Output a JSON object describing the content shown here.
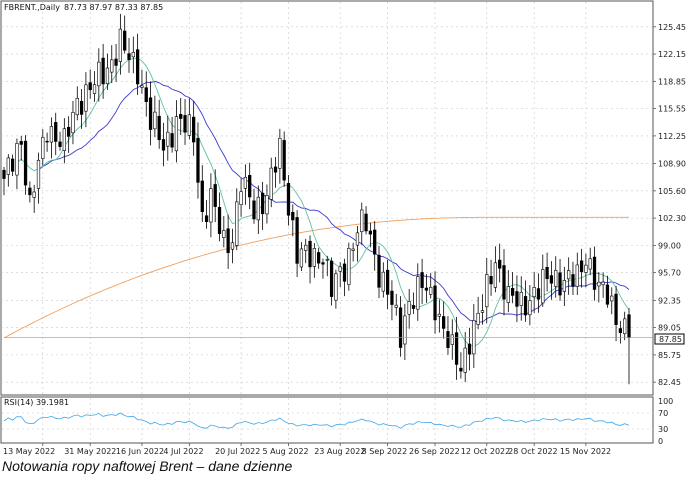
{
  "header": {
    "symbol": "FBRENT.,Daily",
    "ohlc": "87.73 87.97 87.33 87.85"
  },
  "caption": "Notowania ropy naftowej Brent – dane dzienne",
  "colors": {
    "up": "#ffffff",
    "down": "#000000",
    "ma_fast": "#5fc2a0",
    "ma_mid": "#3a3ad0",
    "ma_slow": "#f0a060",
    "rsi": "#3fa7e8",
    "grid": "#c8c8c8"
  },
  "chart_data": [
    {
      "type": "candlestick",
      "y_ticks": [
        "125.45",
        "122.15",
        "118.85",
        "115.55",
        "112.25",
        "108.90",
        "105.60",
        "102.30",
        "99.00",
        "95.70",
        "92.35",
        "89.05",
        "85.75",
        "82.45"
      ],
      "ylim": [
        81.5,
        127.0
      ],
      "x_ticks": [
        "13 May 2022",
        "31 May 2022",
        "16 Jun 2022",
        "4 Jul 2022",
        "20 Jul 2022",
        "5 Aug 2022",
        "23 Aug 2022",
        "8 Sep 2022",
        "26 Sep 2022",
        "12 Oct 2022",
        "28 Oct 2022",
        "15 Nov 2022"
      ],
      "last_price": "87.85",
      "anchors": [
        [
          "2022-05-02",
          106.5
        ],
        [
          "2022-05-06",
          112.0
        ],
        [
          "2022-05-10",
          103.5
        ],
        [
          "2022-05-16",
          113.5
        ],
        [
          "2022-05-20",
          111.0
        ],
        [
          "2022-05-25",
          116.5
        ],
        [
          "2022-05-31",
          118.5
        ],
        [
          "2022-06-03",
          120.5
        ],
        [
          "2022-06-08",
          123.5
        ],
        [
          "2022-06-10",
          121.5
        ],
        [
          "2022-06-14",
          120.5
        ],
        [
          "2022-06-17",
          114.0
        ],
        [
          "2022-06-22",
          111.0
        ],
        [
          "2022-06-27",
          114.0
        ],
        [
          "2022-07-01",
          112.5
        ],
        [
          "2022-07-05",
          102.5
        ],
        [
          "2022-07-07",
          104.5
        ],
        [
          "2022-07-12",
          99.5
        ],
        [
          "2022-07-14",
          100.0
        ],
        [
          "2022-07-18",
          106.5
        ],
        [
          "2022-07-21",
          103.5
        ],
        [
          "2022-07-26",
          105.0
        ],
        [
          "2022-07-29",
          110.5
        ],
        [
          "2022-08-04",
          98.0
        ],
        [
          "2022-08-08",
          97.5
        ],
        [
          "2022-08-12",
          98.0
        ],
        [
          "2022-08-16",
          93.5
        ],
        [
          "2022-08-19",
          96.5
        ],
        [
          "2022-08-24",
          101.0
        ],
        [
          "2022-08-26",
          101.5
        ],
        [
          "2022-08-31",
          96.0
        ],
        [
          "2022-09-02",
          93.5
        ],
        [
          "2022-09-07",
          88.0
        ],
        [
          "2022-09-09",
          92.5
        ],
        [
          "2022-09-14",
          94.0
        ],
        [
          "2022-09-19",
          92.0
        ],
        [
          "2022-09-23",
          86.0
        ],
        [
          "2022-09-27",
          84.0
        ],
        [
          "2022-09-29",
          88.0
        ],
        [
          "2022-10-04",
          91.5
        ],
        [
          "2022-10-07",
          97.5
        ],
        [
          "2022-10-12",
          92.5
        ],
        [
          "2022-10-17",
          92.0
        ],
        [
          "2022-10-21",
          93.5
        ],
        [
          "2022-10-26",
          95.5
        ],
        [
          "2022-10-31",
          94.5
        ],
        [
          "2022-11-03",
          95.0
        ],
        [
          "2022-11-07",
          98.0
        ],
        [
          "2022-11-10",
          93.5
        ],
        [
          "2022-11-14",
          93.0
        ],
        [
          "2022-11-17",
          89.5
        ],
        [
          "2022-11-21",
          87.85
        ]
      ],
      "series": [
        {
          "name": "MA fast",
          "key": "ma_fast"
        },
        {
          "name": "MA mid",
          "key": "ma_mid"
        },
        {
          "name": "MA slow",
          "key": "ma_slow"
        }
      ]
    },
    {
      "type": "line",
      "title": "RSI(14) 39.1981",
      "y_ticks": [
        "100",
        "70",
        "30",
        "0"
      ],
      "ylim": [
        0,
        100
      ],
      "levels": [
        70,
        30
      ]
    }
  ]
}
